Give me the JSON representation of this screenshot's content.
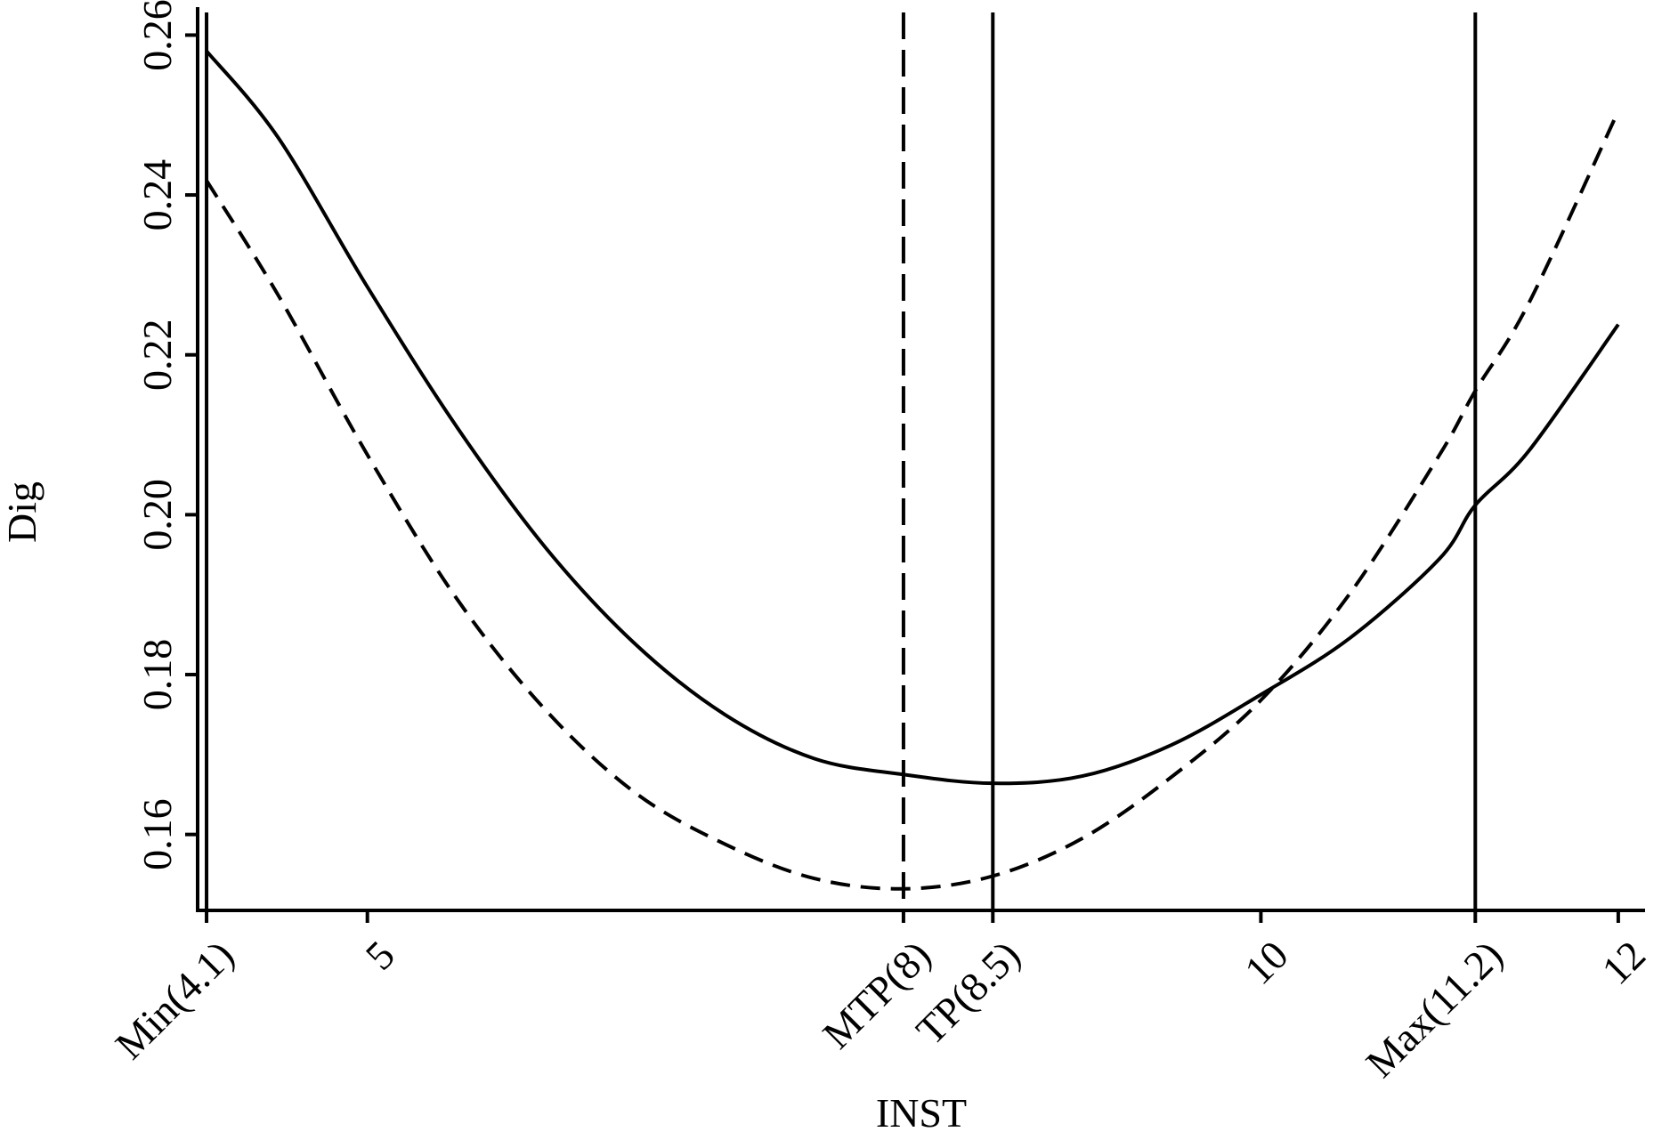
{
  "chart_data": {
    "type": "line",
    "title": "",
    "xlabel": "INST",
    "ylabel": "Dig",
    "xlim": [
      4.05,
      12.15
    ],
    "ylim": [
      0.1505,
      0.2635
    ],
    "x_ticks": [
      {
        "value": 4.1,
        "label": "Min(4.1)"
      },
      {
        "value": 5,
        "label": "5"
      },
      {
        "value": 8,
        "label": "MTP(8)"
      },
      {
        "value": 8.5,
        "label": "TP(8.5)"
      },
      {
        "value": 10,
        "label": "10"
      },
      {
        "value": 11.2,
        "label": "Max(11.2)"
      },
      {
        "value": 12,
        "label": "12"
      }
    ],
    "y_ticks": [
      {
        "value": 0.16,
        "label": "0.16"
      },
      {
        "value": 0.18,
        "label": "0.18"
      },
      {
        "value": 0.2,
        "label": "0.20"
      },
      {
        "value": 0.22,
        "label": "0.22"
      },
      {
        "value": 0.24,
        "label": "0.24"
      },
      {
        "value": 0.26,
        "label": "0.26"
      }
    ],
    "vertical_lines": [
      {
        "x": 4.1,
        "style": "solid"
      },
      {
        "x": 8,
        "style": "dashed"
      },
      {
        "x": 8.5,
        "style": "solid"
      },
      {
        "x": 11.2,
        "style": "solid"
      }
    ],
    "series": [
      {
        "style": "solid",
        "x": [
          4.1,
          4.5,
          5,
          5.5,
          6,
          6.5,
          7,
          7.5,
          8,
          8.5,
          9,
          9.5,
          10,
          10.5,
          11,
          11.2,
          11.5,
          12
        ],
        "values": [
          0.258,
          0.2472,
          0.2285,
          0.211,
          0.1958,
          0.1838,
          0.175,
          0.1695,
          0.1675,
          0.1664,
          0.1673,
          0.1712,
          0.1775,
          0.1846,
          0.1945,
          0.2012,
          0.208,
          0.2238
        ]
      },
      {
        "style": "dashed",
        "x": [
          4.1,
          4.5,
          5,
          5.5,
          6,
          6.5,
          7,
          7.5,
          8,
          8.5,
          9,
          9.5,
          10,
          10.5,
          11,
          11.2,
          11.5,
          12
        ],
        "values": [
          0.2418,
          0.2275,
          0.2075,
          0.1895,
          0.1755,
          0.1652,
          0.1588,
          0.1545,
          0.1532,
          0.1548,
          0.1595,
          0.1672,
          0.1768,
          0.1902,
          0.2075,
          0.2155,
          0.2265,
          0.2505
        ]
      }
    ],
    "grid": false,
    "legend": "none"
  }
}
